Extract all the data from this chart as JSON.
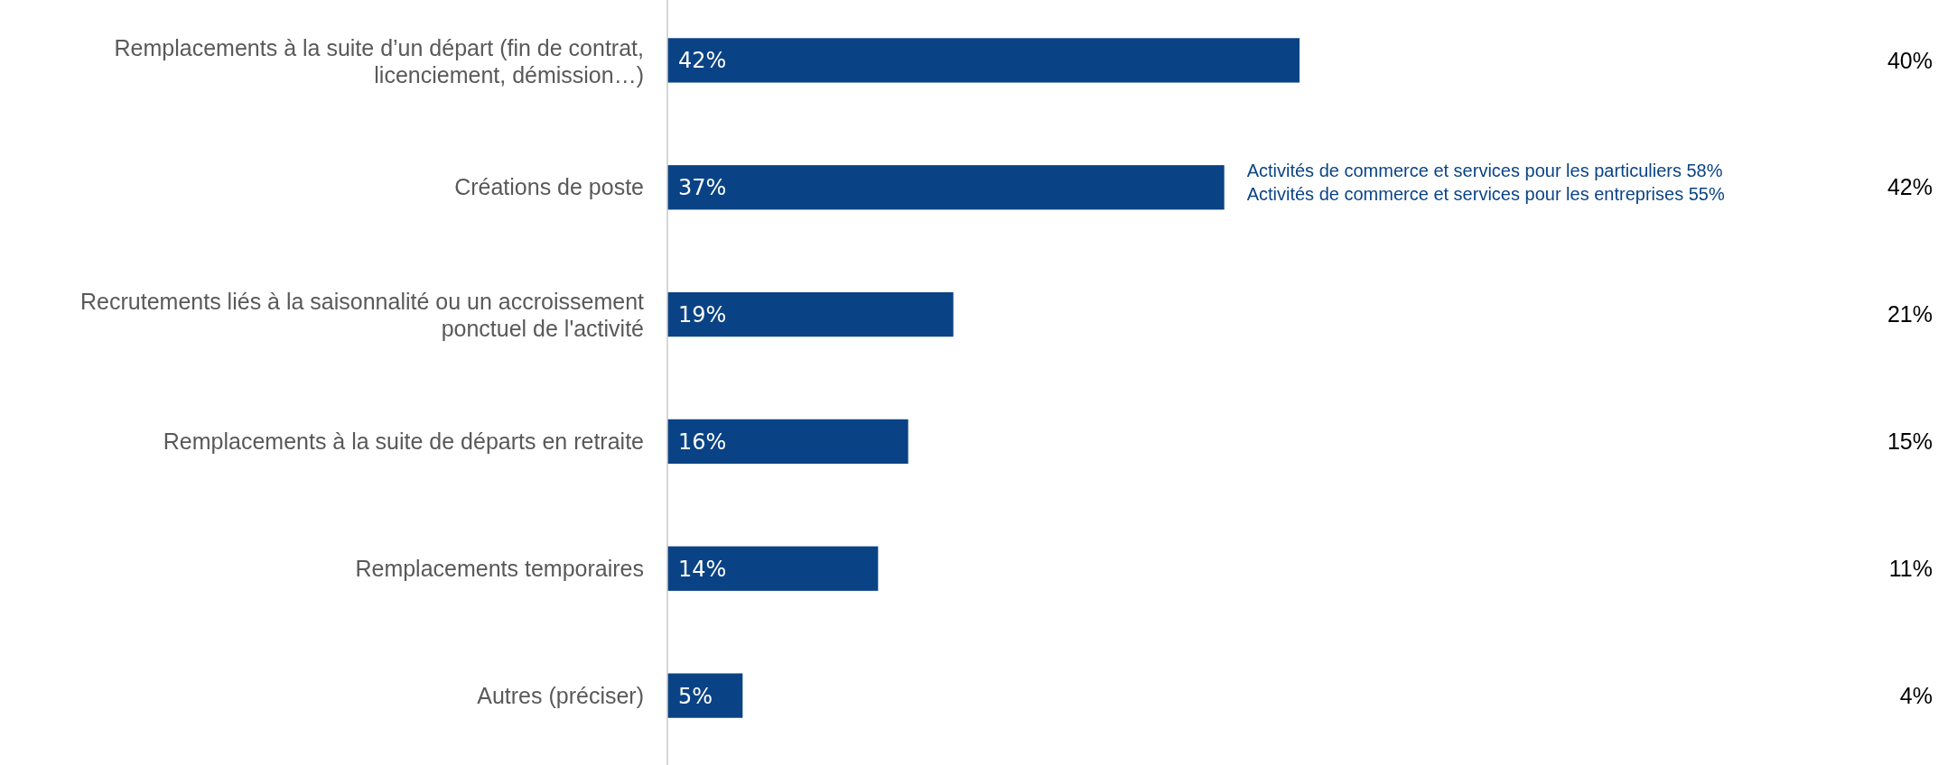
{
  "chart_data": {
    "type": "bar",
    "orientation": "horizontal",
    "categories": [
      "Remplacements à la suite d’un départ (fin de contrat, licenciement, démission…)",
      "Créations de poste",
      "Recrutements liés à la saisonnalité ou un accroissement ponctuel de l'activité",
      "Remplacements à la suite de départs en retraite",
      "Remplacements temporaires",
      "Autres (préciser)"
    ],
    "values": [
      42,
      37,
      19,
      16,
      14,
      5
    ],
    "value_labels": [
      "42%",
      "37%",
      "19%",
      "16%",
      "14%",
      "5%"
    ],
    "color": "#0a4385",
    "annotations": [
      {
        "text": "Activités de commerce et services pour les particuliers 58%\nActivités de commerce et services pour les entreprises 55%",
        "x": 37,
        "y": "Créations de poste"
      },
      "40%",
      "42%",
      "21%",
      "15%",
      "11%",
      "4%"
    ]
  }
}
